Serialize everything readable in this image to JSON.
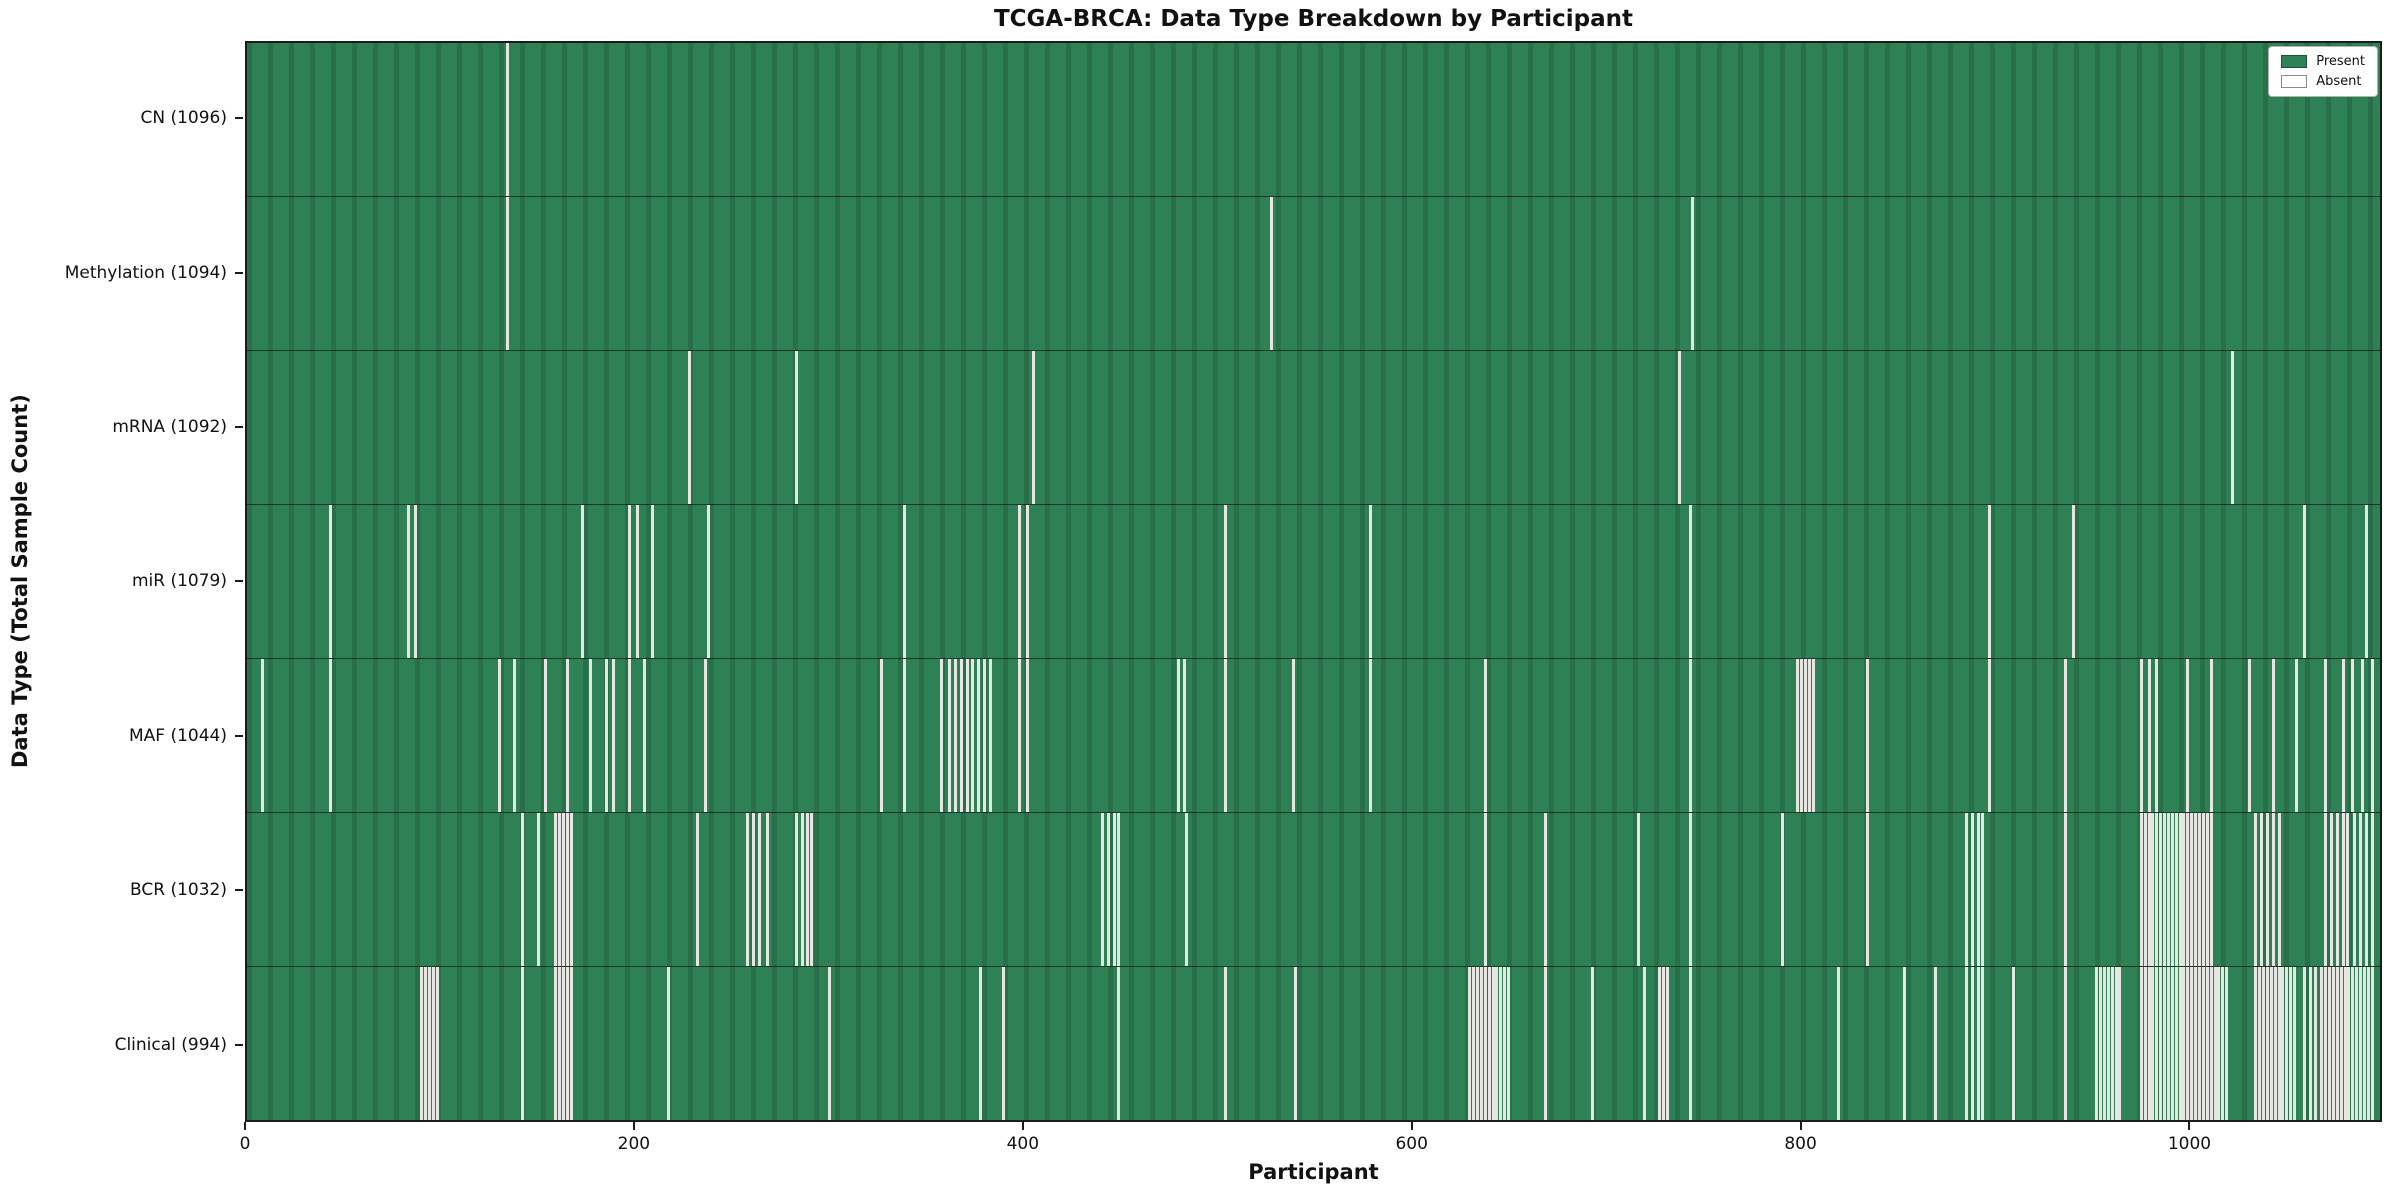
{
  "chart_data": {
    "type": "heatmap",
    "title": "TCGA-BRCA: Data Type Breakdown by Participant",
    "xlabel": "Participant",
    "ylabel": "Data Type (Total Sample Count)",
    "x_ticks": [
      0,
      200,
      400,
      600,
      800,
      1000
    ],
    "x_max": 1099,
    "n_participants": 1097,
    "grid": false,
    "legend_position": "upper right",
    "legend": [
      {
        "label": "Present",
        "color": "#2e8055"
      },
      {
        "label": "Absent",
        "color": "#ffffff"
      }
    ],
    "colors": {
      "present": "#2e8055",
      "absent": "#ffffff",
      "stripe": "#e6e6e3"
    },
    "rows": [
      {
        "label": "CN (1096)",
        "total": 1096,
        "absent": [
          134
        ]
      },
      {
        "label": "Methylation (1094)",
        "total": 1094,
        "absent": [
          134,
          528,
          745
        ]
      },
      {
        "label": "mRNA (1092)",
        "total": 1092,
        "absent": [
          228,
          283,
          405,
          738,
          1023
        ]
      },
      {
        "label": "miR (1079)",
        "total": 1079,
        "absent": [
          43,
          83,
          87,
          173,
          197,
          201,
          209,
          238,
          339,
          398,
          402,
          504,
          579,
          744,
          898,
          941,
          1060,
          1092
        ]
      },
      {
        "label": "MAF (1044)",
        "total": 1044,
        "absent": [
          8,
          43,
          130,
          138,
          154,
          165,
          177,
          185,
          189,
          197,
          205,
          236,
          327,
          339,
          358,
          362,
          365,
          368,
          371,
          374,
          377,
          380,
          383,
          398,
          402,
          480,
          483,
          504,
          539,
          579,
          638,
          744,
          799,
          801,
          803,
          805,
          807,
          835,
          898,
          937,
          976,
          980,
          984,
          1000,
          1012,
          1032,
          1044,
          1056,
          1071,
          1080,
          1085,
          1090,
          1095
        ]
      },
      {
        "label": "BCR (1032)",
        "total": 1032,
        "absent": [
          142,
          150,
          159,
          161,
          163,
          165,
          167,
          232,
          258,
          261,
          264,
          268,
          283,
          286,
          289,
          291,
          441,
          444,
          447,
          449,
          484,
          638,
          669,
          717,
          744,
          791,
          835,
          886,
          889,
          892,
          894,
          937,
          976,
          978,
          980,
          982,
          984,
          986,
          988,
          990,
          992,
          994,
          996,
          998,
          1000,
          1002,
          1004,
          1006,
          1008,
          1010,
          1012,
          1035,
          1038,
          1041,
          1044,
          1047,
          1071,
          1074,
          1077,
          1080,
          1082,
          1086,
          1089,
          1092,
          1095
        ]
      },
      {
        "label": "Clinical (994)",
        "total": 994,
        "absent": [
          90,
          92,
          94,
          96,
          98,
          142,
          159,
          161,
          163,
          165,
          167,
          217,
          300,
          378,
          390,
          449,
          504,
          540,
          630,
          632,
          634,
          636,
          638,
          640,
          642,
          644,
          646,
          648,
          650,
          669,
          693,
          720,
          728,
          730,
          732,
          744,
          820,
          854,
          870,
          886,
          889,
          892,
          894,
          910,
          937,
          953,
          955,
          957,
          959,
          961,
          963,
          965,
          976,
          978,
          980,
          982,
          984,
          986,
          988,
          990,
          992,
          994,
          996,
          998,
          1000,
          1002,
          1004,
          1006,
          1008,
          1010,
          1012,
          1014,
          1016,
          1018,
          1020,
          1035,
          1037,
          1039,
          1041,
          1043,
          1045,
          1047,
          1049,
          1051,
          1053,
          1055,
          1060,
          1063,
          1066,
          1069,
          1071,
          1073,
          1075,
          1077,
          1079,
          1081,
          1083,
          1085,
          1087,
          1089,
          1091,
          1093,
          1095
        ]
      }
    ]
  }
}
